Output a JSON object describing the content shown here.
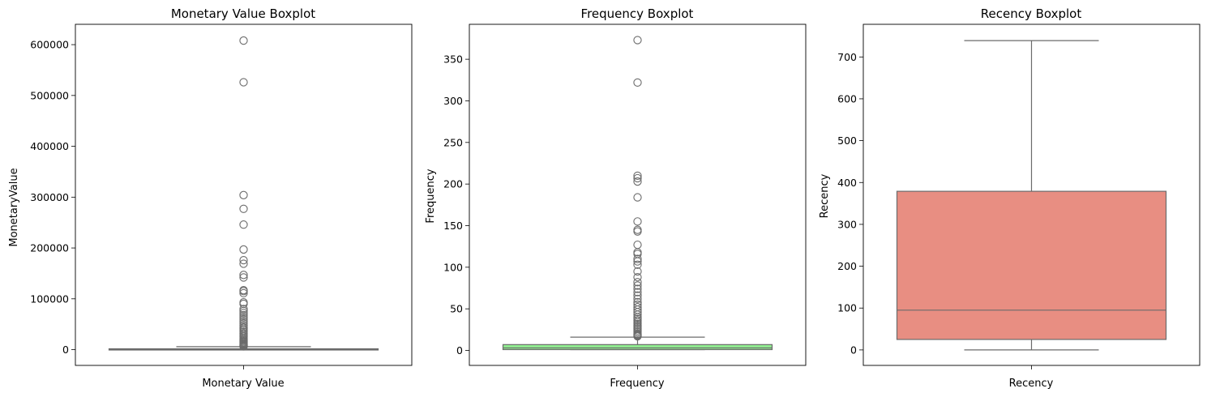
{
  "chart_data": [
    {
      "type": "boxplot",
      "title": "Monetary Value Boxplot",
      "xlabel": "Monetary Value",
      "ylabel": "MonetaryValue",
      "ylim": [
        -31000,
        640000
      ],
      "yticks": [
        0,
        100000,
        200000,
        300000,
        400000,
        500000,
        600000
      ],
      "ytick_labels": [
        "0",
        "100000",
        "200000",
        "300000",
        "400000",
        "500000",
        "600000"
      ],
      "box_color": "#8fbc8f",
      "box": {
        "whisker_low": 0,
        "q1": 300,
        "median": 700,
        "q3": 1700,
        "whisker_high": 5800
      },
      "outliers": [
        608000,
        526000,
        304000,
        277000,
        246000,
        197000,
        176000,
        169000,
        147000,
        142000,
        117000,
        115000,
        111000,
        93000,
        90000,
        80000,
        76000,
        72000,
        68000,
        64000,
        60000,
        56000,
        52000,
        48000,
        44000,
        41000,
        38000,
        35000,
        32000,
        29000,
        26000,
        23000,
        20000,
        18000,
        16000,
        14000,
        12000,
        10500,
        9000,
        8000,
        7000,
        6500
      ],
      "grid": false
    },
    {
      "type": "boxplot",
      "title": "Frequency Boxplot",
      "xlabel": "Frequency",
      "ylabel": "Frequency",
      "ylim": [
        -18,
        392
      ],
      "yticks": [
        0,
        50,
        100,
        150,
        200,
        250,
        300,
        350
      ],
      "ytick_labels": [
        "0",
        "50",
        "100",
        "150",
        "200",
        "250",
        "300",
        "350"
      ],
      "box_color": "#90ee90",
      "box": {
        "whisker_low": 1,
        "q1": 1,
        "median": 3,
        "q3": 7,
        "whisker_high": 16
      },
      "outliers": [
        373,
        322,
        210,
        207,
        203,
        184,
        155,
        145,
        143,
        127,
        118,
        116,
        110,
        107,
        103,
        95,
        88,
        82,
        78,
        74,
        70,
        66,
        62,
        58,
        55,
        52,
        49,
        46,
        43,
        40,
        38,
        36,
        34,
        32,
        30,
        28,
        26,
        24,
        22,
        20,
        19,
        18,
        17
      ],
      "grid": false
    },
    {
      "type": "boxplot",
      "title": "Recency Boxplot",
      "xlabel": "Recency",
      "ylabel": "Recency",
      "ylim": [
        -37,
        778
      ],
      "yticks": [
        0,
        100,
        200,
        300,
        400,
        500,
        600,
        700
      ],
      "ytick_labels": [
        "0",
        "100",
        "200",
        "300",
        "400",
        "500",
        "600",
        "700"
      ],
      "box_color": "#e88e82",
      "box": {
        "whisker_low": 0,
        "q1": 25,
        "median": 95,
        "q3": 379,
        "whisker_high": 739
      },
      "outliers": [],
      "grid": false
    }
  ]
}
